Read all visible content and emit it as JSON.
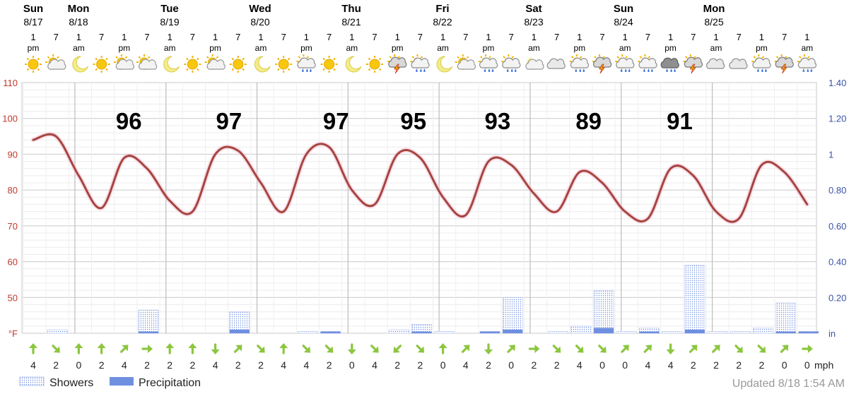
{
  "chart_data": {
    "type": "line",
    "title": "",
    "days": [
      {
        "label": "Sun",
        "date": "8/17"
      },
      {
        "label": "Mon",
        "date": "8/18"
      },
      {
        "label": "Tue",
        "date": "8/19"
      },
      {
        "label": "Wed",
        "date": "8/20"
      },
      {
        "label": "Thu",
        "date": "8/21"
      },
      {
        "label": "Fri",
        "date": "8/22"
      },
      {
        "label": "Sat",
        "date": "8/23"
      },
      {
        "label": "Sun",
        "date": "8/24"
      },
      {
        "label": "Mon",
        "date": "8/25"
      }
    ],
    "hour_labels": [
      {
        "h": "1",
        "ap": "pm"
      },
      {
        "h": "7",
        "ap": ""
      },
      {
        "h": "1",
        "ap": "am"
      },
      {
        "h": "7",
        "ap": ""
      },
      {
        "h": "1",
        "ap": "pm"
      },
      {
        "h": "7",
        "ap": ""
      },
      {
        "h": "1",
        "ap": "am"
      },
      {
        "h": "7",
        "ap": ""
      },
      {
        "h": "1",
        "ap": "pm"
      },
      {
        "h": "7",
        "ap": ""
      },
      {
        "h": "1",
        "ap": "am"
      },
      {
        "h": "7",
        "ap": ""
      },
      {
        "h": "1",
        "ap": "pm"
      },
      {
        "h": "7",
        "ap": ""
      },
      {
        "h": "1",
        "ap": "am"
      },
      {
        "h": "7",
        "ap": ""
      },
      {
        "h": "1",
        "ap": "pm"
      },
      {
        "h": "7",
        "ap": ""
      },
      {
        "h": "1",
        "ap": "am"
      },
      {
        "h": "7",
        "ap": ""
      },
      {
        "h": "1",
        "ap": "pm"
      },
      {
        "h": "7",
        "ap": ""
      },
      {
        "h": "1",
        "ap": "am"
      },
      {
        "h": "7",
        "ap": ""
      },
      {
        "h": "1",
        "ap": "pm"
      },
      {
        "h": "7",
        "ap": ""
      },
      {
        "h": "1",
        "ap": "am"
      },
      {
        "h": "7",
        "ap": ""
      },
      {
        "h": "1",
        "ap": "pm"
      },
      {
        "h": "7",
        "ap": ""
      },
      {
        "h": "1",
        "ap": "am"
      },
      {
        "h": "7",
        "ap": ""
      },
      {
        "h": "1",
        "ap": "pm"
      },
      {
        "h": "7",
        "ap": ""
      },
      {
        "h": "1",
        "ap": "am"
      }
    ],
    "weather_icons": [
      "sun-icon",
      "partly-cloudy-day-icon",
      "moon-icon",
      "sun-icon",
      "partly-cloudy-day-icon",
      "partly-cloudy-day-icon",
      "moon-icon",
      "sun-icon",
      "partly-cloudy-day-icon",
      "sun-icon",
      "moon-icon",
      "sun-icon",
      "rain-cloud-icon",
      "sun-icon",
      "moon-icon",
      "sun-icon",
      "thunderstorm-icon",
      "rain-cloud-icon",
      "moon-icon",
      "partly-cloudy-day-icon",
      "rain-cloud-icon",
      "rain-cloud-icon",
      "partly-cloudy-night-icon",
      "cloudy-icon",
      "rain-cloud-icon",
      "thunderstorm-icon",
      "rain-cloud-icon",
      "rain-cloud-icon",
      "heavy-rain-cloud-icon",
      "thunderstorm-icon",
      "cloudy-icon",
      "cloudy-icon",
      "rain-cloud-icon",
      "thunderstorm-icon",
      "rain-cloud-icon"
    ],
    "temperature_series": {
      "name": "Temperature",
      "unit": "°F",
      "color": "#a5463e",
      "x": [
        0,
        1,
        2,
        3,
        4,
        5,
        6,
        7,
        8,
        9,
        10,
        11,
        12,
        13,
        14,
        15,
        16,
        17,
        18,
        19,
        20,
        21,
        22,
        23,
        24,
        25,
        26,
        27,
        28,
        29,
        30,
        31,
        32,
        33,
        34
      ],
      "values": [
        94,
        95,
        84,
        75,
        89,
        86,
        77,
        74,
        90,
        91,
        82,
        74,
        90,
        92,
        80,
        76,
        90,
        89,
        78,
        73,
        88,
        87,
        79,
        74,
        85,
        82,
        74,
        72,
        86,
        84,
        74,
        72,
        87,
        85,
        76
      ]
    },
    "daily_highs": [
      {
        "x": 4.2,
        "value": "96"
      },
      {
        "x": 8.6,
        "value": "97"
      },
      {
        "x": 13.3,
        "value": "97"
      },
      {
        "x": 16.7,
        "value": "95"
      },
      {
        "x": 20.4,
        "value": "93"
      },
      {
        "x": 24.4,
        "value": "89"
      },
      {
        "x": 28.4,
        "value": "91"
      }
    ],
    "showers_in": [
      0,
      0.02,
      0,
      0,
      0,
      0.13,
      0,
      0,
      0,
      0.12,
      0,
      0,
      0.01,
      0.01,
      0,
      0,
      0.02,
      0.05,
      0.01,
      0,
      0.01,
      0.2,
      0,
      0.01,
      0.04,
      0.24,
      0.01,
      0.03,
      0.01,
      0.38,
      0.01,
      0.01,
      0.03,
      0.17,
      0.01
    ],
    "precip_in": [
      0,
      0,
      0,
      0,
      0,
      0.01,
      0,
      0,
      0,
      0.02,
      0,
      0,
      0,
      0.01,
      0,
      0,
      0,
      0.01,
      0,
      0,
      0.01,
      0.02,
      0,
      0,
      0,
      0.03,
      0,
      0.01,
      0,
      0.02,
      0,
      0,
      0,
      0.01,
      0.01
    ],
    "wind_mph": [
      4,
      2,
      0,
      2,
      4,
      2,
      2,
      2,
      4,
      2,
      2,
      4,
      4,
      2,
      0,
      4,
      2,
      2,
      0,
      4,
      2,
      0,
      2,
      2,
      4,
      0,
      0,
      4,
      4,
      2,
      2,
      2,
      2,
      0,
      "0"
    ],
    "wind_arrow_deg": [
      180,
      315,
      180,
      180,
      225,
      270,
      180,
      180,
      0,
      225,
      315,
      180,
      315,
      315,
      0,
      315,
      45,
      315,
      180,
      225,
      0,
      225,
      270,
      315,
      315,
      315,
      225,
      225,
      0,
      225,
      225,
      315,
      315,
      225,
      270
    ],
    "y_left": {
      "ticks": [
        "110",
        "100",
        "90",
        "80",
        "70",
        "60",
        "50"
      ],
      "unit": "°F",
      "ylim": [
        40,
        110
      ]
    },
    "y_right": {
      "ticks": [
        "1.40",
        "1.20",
        "1",
        "0.80",
        "0.60",
        "0.40",
        "0.20"
      ],
      "unit": "in",
      "ylim": [
        0,
        1.4
      ]
    },
    "wind_unit": "mph",
    "legend": [
      {
        "label": "Showers",
        "color": "#6f8fe0",
        "style": "dotted"
      },
      {
        "label": "Precipitation",
        "color": "#6f8fe0",
        "style": "solid"
      }
    ],
    "updated": "Updated 8/18 1:54 AM",
    "colors": {
      "temp_line": "#a5463e",
      "left_axis": "#c0392b",
      "right_axis": "#3a52a8",
      "arrow": "#8cc63f",
      "precip": "#6f8fe0",
      "grid": "#d9d9d9",
      "day_line": "#bdbdbd"
    }
  }
}
